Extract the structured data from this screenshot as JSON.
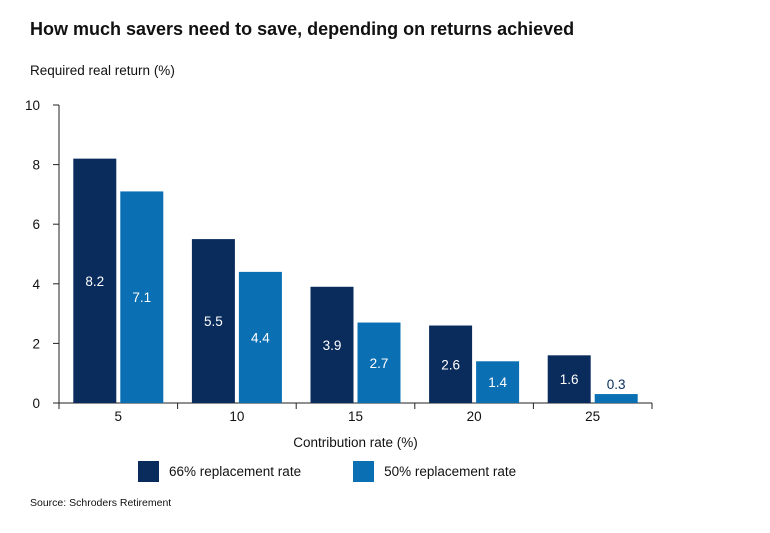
{
  "chart_data": {
    "type": "bar",
    "title": "How much savers need to save, depending on returns achieved",
    "ylabel": "Required real return (%)",
    "xlabel": "Contribution rate (%)",
    "categories": [
      "5",
      "10",
      "15",
      "20",
      "25"
    ],
    "series": [
      {
        "name": "66% replacement rate",
        "color": "#0a2c5c",
        "values": [
          8.2,
          5.5,
          3.9,
          2.6,
          1.6
        ]
      },
      {
        "name": "50% replacement rate",
        "color": "#0a6fb3",
        "values": [
          7.1,
          4.4,
          2.7,
          1.4,
          0.3
        ]
      }
    ],
    "ylim": [
      0,
      10
    ],
    "yticks": [
      0,
      2,
      4,
      6,
      8,
      10
    ],
    "grid": false,
    "legend_position": "bottom",
    "data_label_colors": {
      "inside": "#ffffff",
      "outside": "#0a2c5c"
    }
  },
  "source": "Source: Schroders Retirement"
}
